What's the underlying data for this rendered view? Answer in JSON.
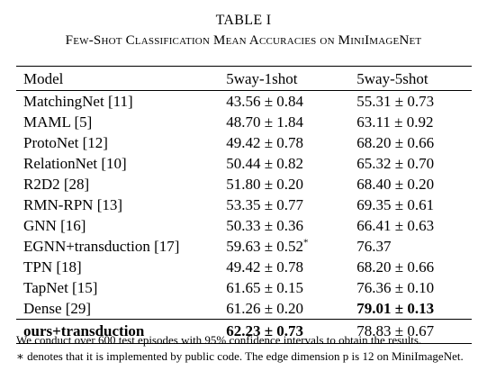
{
  "caption": {
    "number": "TABLE I",
    "title": "Few-Shot Classification Mean Accuracies on MiniImageNet"
  },
  "table": {
    "headers": [
      "Model",
      "5way-1shot",
      "5way-5shot"
    ],
    "rows": [
      {
        "model": "MatchingNet [11]",
        "one_shot": "43.56 ± 0.84",
        "five_shot": "55.31 ± 0.73"
      },
      {
        "model": "MAML [5]",
        "one_shot": "48.70 ± 1.84",
        "five_shot": "63.11 ± 0.92"
      },
      {
        "model": "ProtoNet [12]",
        "one_shot": "49.42 ± 0.78",
        "five_shot": "68.20 ± 0.66"
      },
      {
        "model": "RelationNet [10]",
        "one_shot": "50.44 ± 0.82",
        "five_shot": "65.32 ± 0.70"
      },
      {
        "model": "R2D2 [28]",
        "one_shot": "51.80 ± 0.20",
        "five_shot": "68.40 ± 0.20"
      },
      {
        "model": "RMN-RPN [13]",
        "one_shot": "53.35 ± 0.77",
        "five_shot": "69.35 ± 0.61"
      },
      {
        "model": "GNN [16]",
        "one_shot": "50.33 ± 0.36",
        "five_shot": "66.41 ± 0.63"
      },
      {
        "model": "EGNN+transduction [17]",
        "one_shot": "59.63 ± 0.52",
        "one_shot_mark": "*",
        "five_shot": "76.37"
      },
      {
        "model": "TPN [18]",
        "one_shot": "49.42 ± 0.78",
        "five_shot": "68.20 ± 0.66"
      },
      {
        "model": "TapNet [15]",
        "one_shot": "61.65 ± 0.15",
        "five_shot": "76.36 ± 0.10"
      },
      {
        "model": "Dense [29]",
        "one_shot": "61.26 ± 0.20",
        "five_shot": "79.01 ± 0.13"
      },
      {
        "model": "ours+transduction",
        "one_shot": "62.23 ± 0.73",
        "five_shot": "78.83 ± 0.67"
      }
    ]
  },
  "footnote": {
    "line1": "We conduct over 600 test episodes with 95% confidence intervals to obtain the results.",
    "line2": "∗ denotes that it is implemented by public code. The edge dimension p is 12 on MiniImageNet."
  }
}
